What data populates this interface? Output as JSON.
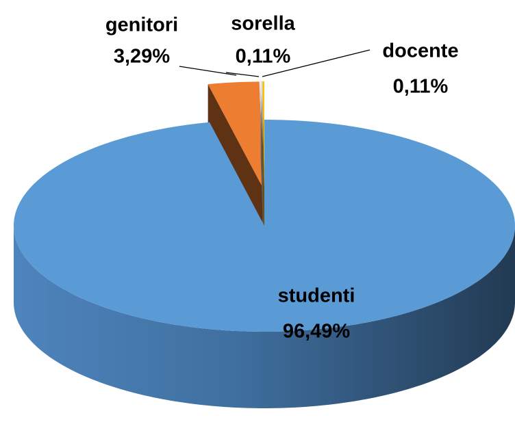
{
  "chart_data": {
    "type": "pie3d",
    "categories": [
      "studenti",
      "genitori",
      "sorella",
      "docente"
    ],
    "values": [
      96.49,
      3.29,
      0.11,
      0.11
    ],
    "value_labels": [
      "96,49%",
      "3,29%",
      "0,11%",
      "0,11%"
    ],
    "colors": [
      "#5b9bd5",
      "#ed7d31",
      "#e6e6e6",
      "#ffc000"
    ]
  }
}
